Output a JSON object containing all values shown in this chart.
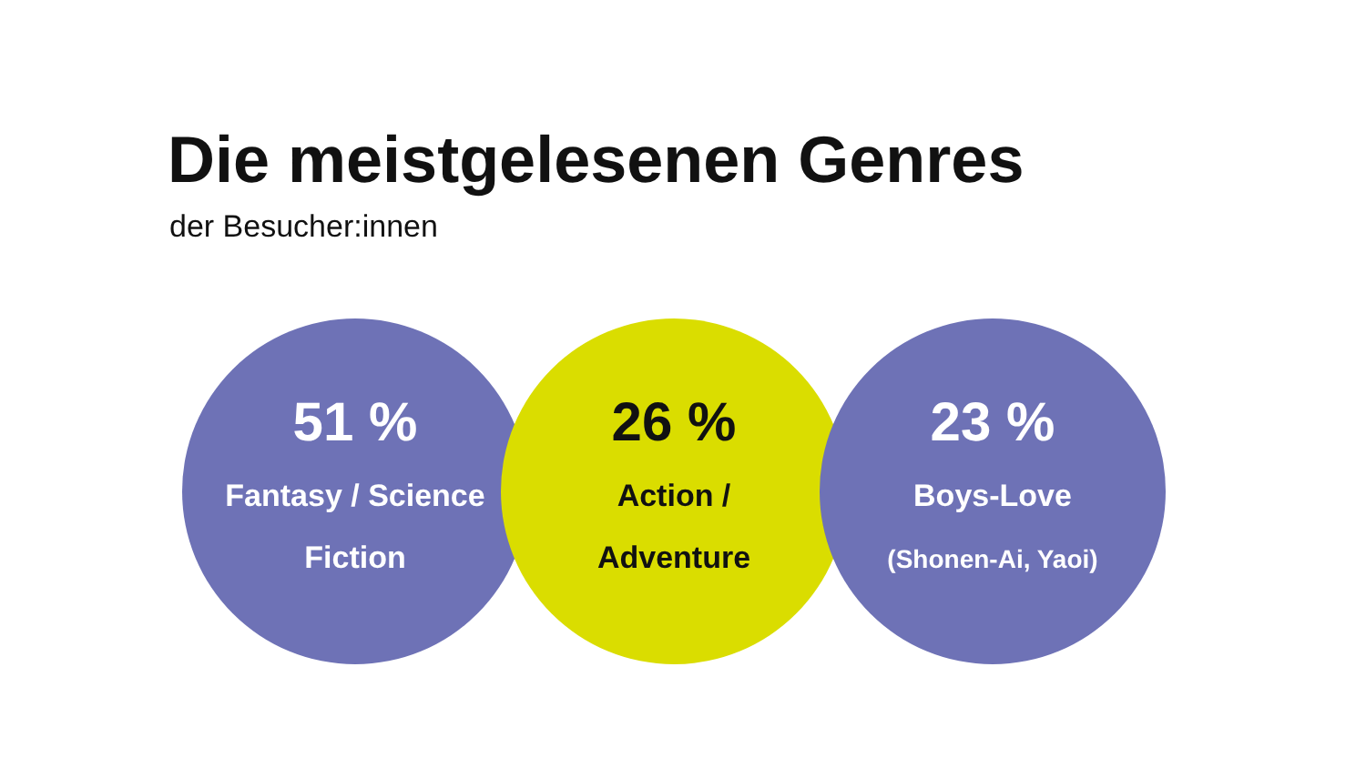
{
  "chart_data": {
    "type": "other",
    "title": "Die meistgelesenen Genres",
    "subtitle": "der Besucher:innen",
    "categories": [
      "Fantasy / Science Fiction",
      "Action / Adventure",
      "Boys-Love (Shonen-Ai, Yaoi)"
    ],
    "values": [
      51,
      26,
      23
    ],
    "value_labels": [
      "51 %",
      "26 %",
      "23 %"
    ],
    "colors": [
      "#6e72b6",
      "#dadd00",
      "#6e72b6"
    ]
  }
}
